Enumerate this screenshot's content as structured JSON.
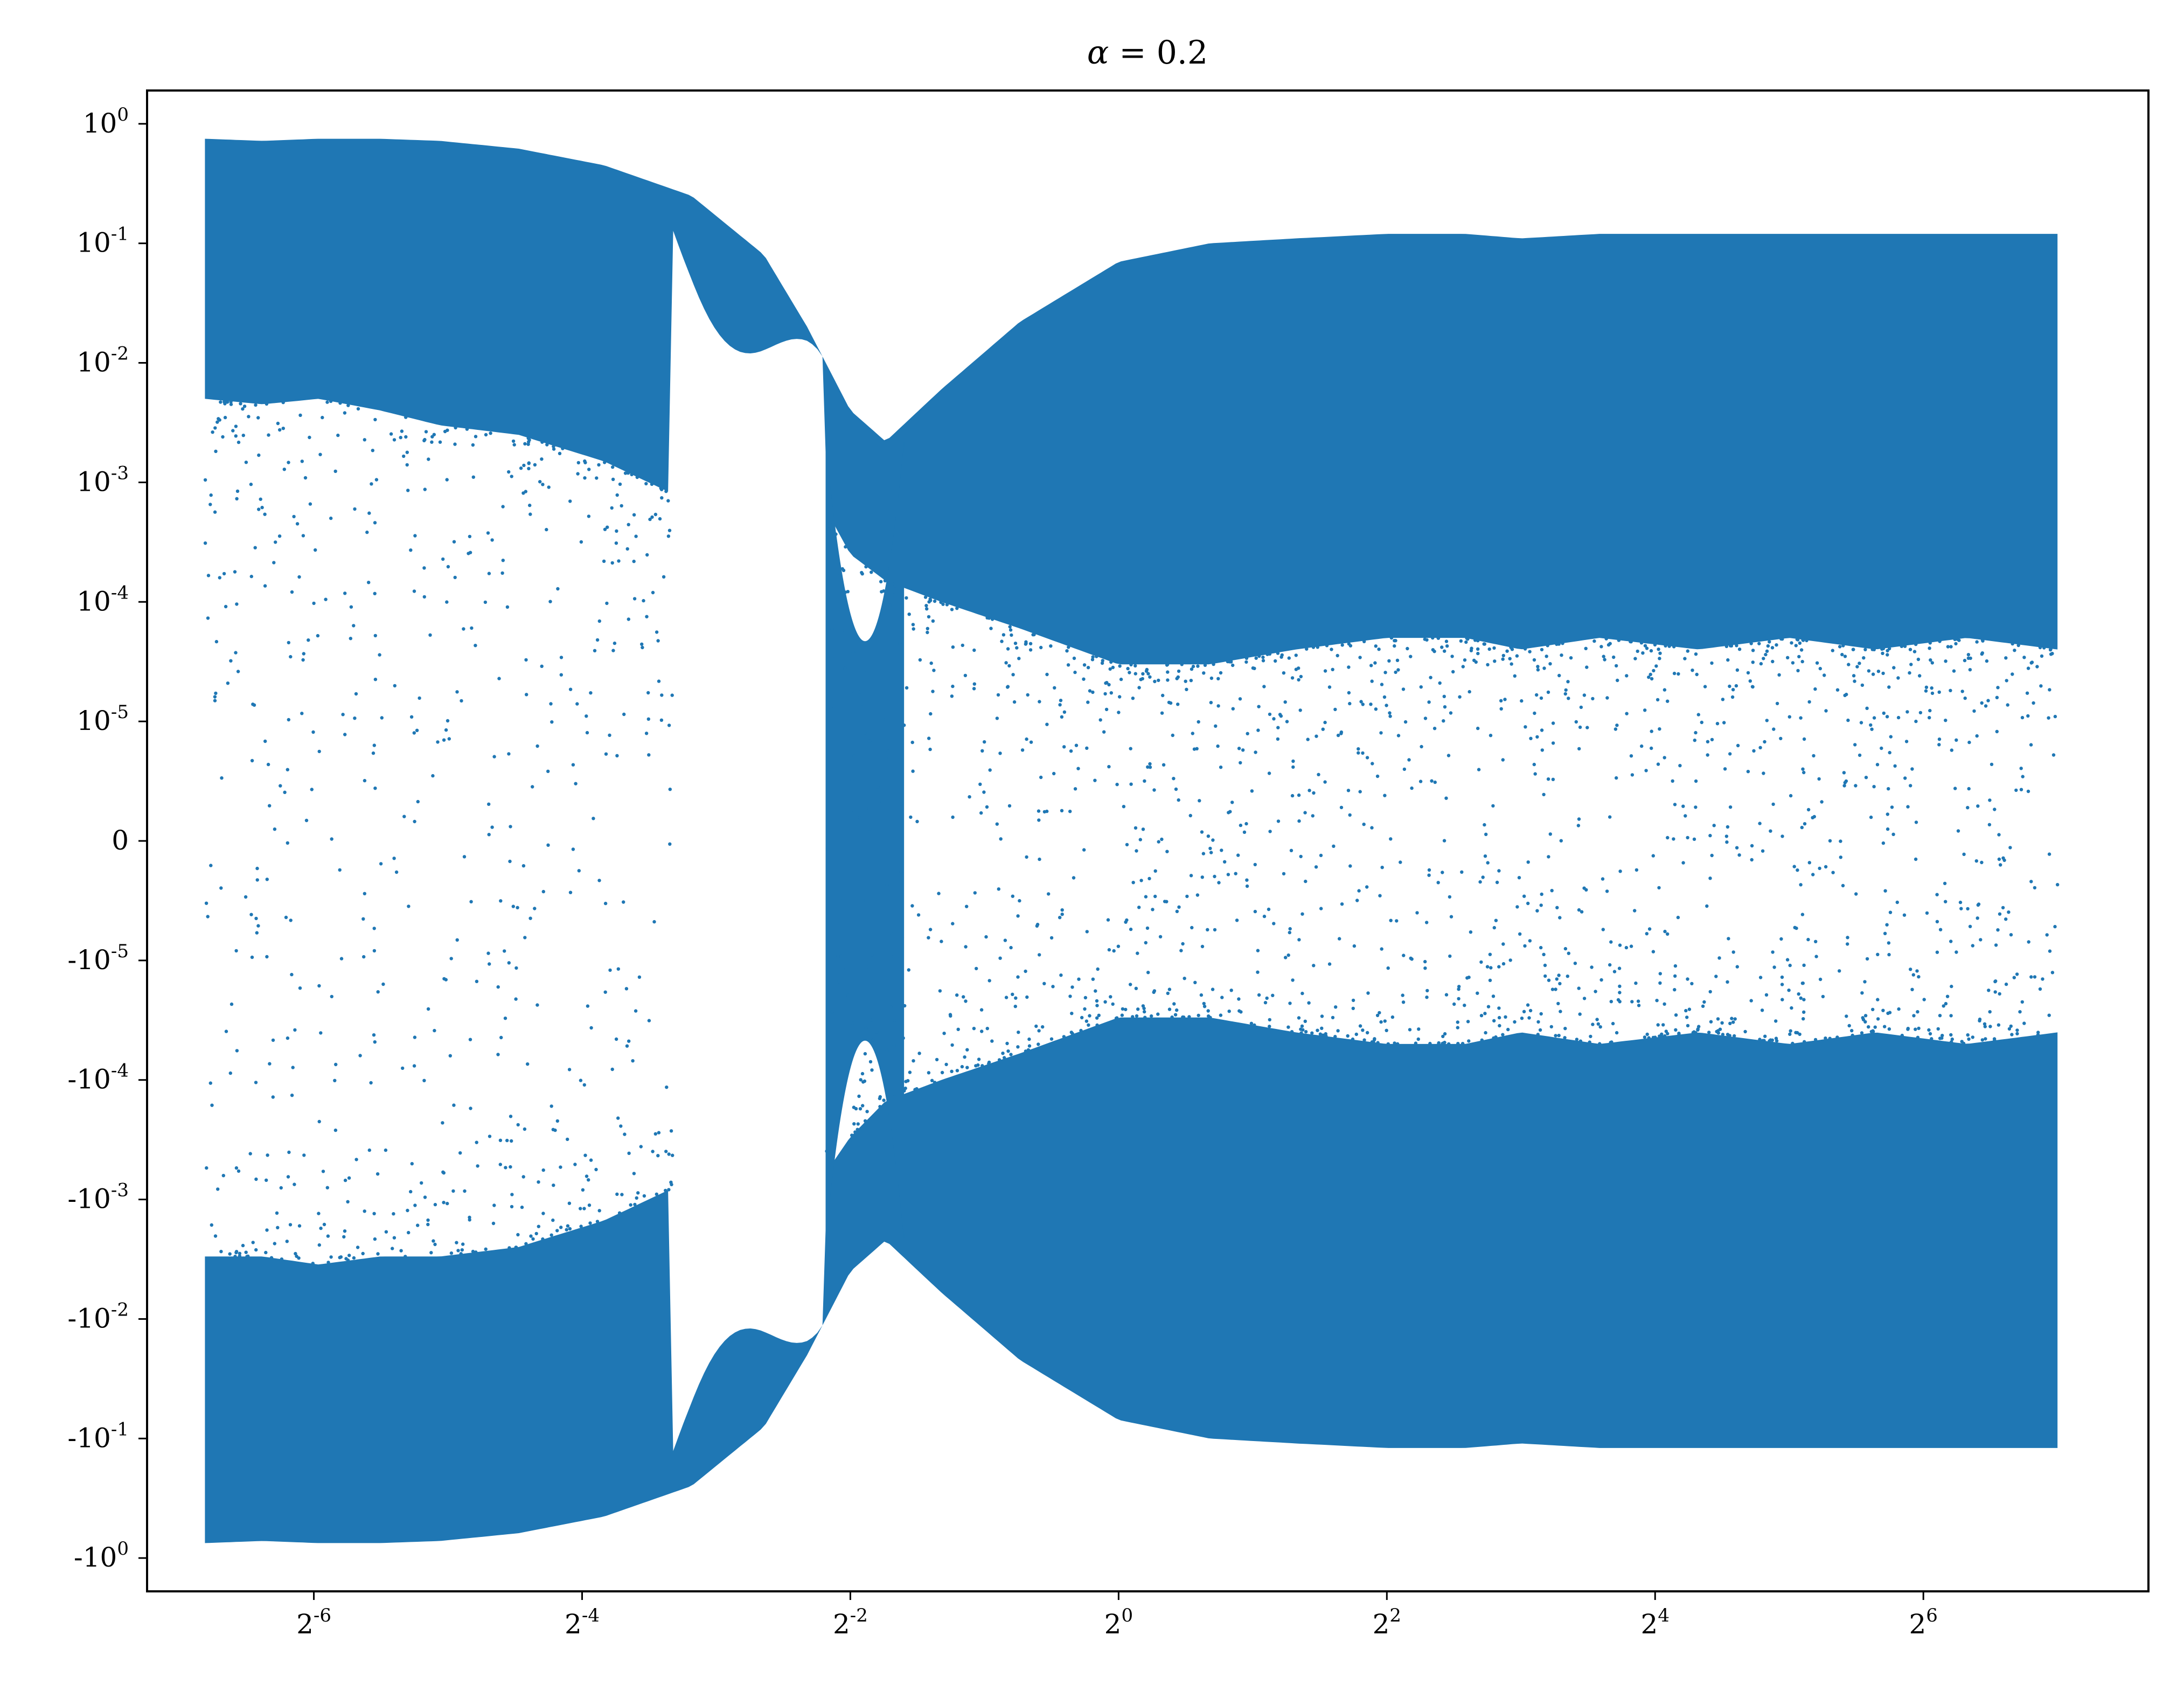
{
  "chart_data": {
    "type": "scatter",
    "title": "α = 0.2",
    "title_parts": {
      "symbol": "α",
      "rest": " = 0.2"
    },
    "xlabel": "",
    "ylabel": "",
    "x_scale": "log2",
    "y_scale": "symlog",
    "y_linthresh": 1e-05,
    "xlim": [
      0.0066,
      204.8
    ],
    "ylim": [
      -1.9,
      1.9
    ],
    "grid": false,
    "legend": null,
    "marker_color": "#1f77b4",
    "x_ticks": [
      {
        "base": "2",
        "exp": "-6",
        "value": 0.015625
      },
      {
        "base": "2",
        "exp": "-4",
        "value": 0.0625
      },
      {
        "base": "2",
        "exp": "-2",
        "value": 0.25
      },
      {
        "base": "2",
        "exp": "0",
        "value": 1
      },
      {
        "base": "2",
        "exp": "2",
        "value": 4
      },
      {
        "base": "2",
        "exp": "4",
        "value": 16
      },
      {
        "base": "2",
        "exp": "6",
        "value": 64
      }
    ],
    "y_ticks": [
      {
        "base": "10",
        "exp": "0",
        "value": 1
      },
      {
        "base": "10",
        "exp": "-1",
        "value": 0.1
      },
      {
        "base": "10",
        "exp": "-2",
        "value": 0.01
      },
      {
        "base": "10",
        "exp": "-3",
        "value": 0.001
      },
      {
        "base": "10",
        "exp": "-4",
        "value": 0.0001
      },
      {
        "base": "10",
        "exp": "-5",
        "value": 1e-05
      },
      {
        "base": "0",
        "exp": "",
        "value": 0
      },
      {
        "base": "-10",
        "exp": "-5",
        "value": -1e-05
      },
      {
        "base": "-10",
        "exp": "-4",
        "value": -0.0001
      },
      {
        "base": "-10",
        "exp": "-3",
        "value": -0.001
      },
      {
        "base": "-10",
        "exp": "-2",
        "value": -0.01
      },
      {
        "base": "-10",
        "exp": "-1",
        "value": -0.1
      },
      {
        "base": "-10",
        "exp": "0",
        "value": -1
      }
    ],
    "envelope": {
      "x": [
        0.0089,
        0.012,
        0.016,
        0.022,
        0.03,
        0.045,
        0.07,
        0.11,
        0.16,
        0.2,
        0.25,
        0.3,
        0.4,
        0.6,
        1.0,
        1.6,
        2.5,
        4,
        6,
        8,
        12,
        20,
        32,
        50,
        80,
        128
      ],
      "upper": [
        0.75,
        0.72,
        0.75,
        0.75,
        0.72,
        0.62,
        0.45,
        0.25,
        0.08,
        0.02,
        0.004,
        0.0022,
        0.006,
        0.022,
        0.07,
        0.1,
        0.11,
        0.12,
        0.12,
        0.11,
        0.12,
        0.12,
        0.12,
        0.12,
        0.12,
        0.12
      ],
      "lower": [
        -0.75,
        -0.72,
        -0.75,
        -0.75,
        -0.72,
        -0.62,
        -0.45,
        -0.25,
        -0.08,
        -0.02,
        -0.004,
        -0.0022,
        -0.006,
        -0.022,
        -0.07,
        -0.1,
        -0.11,
        -0.12,
        -0.12,
        -0.11,
        -0.12,
        -0.12,
        -0.12,
        -0.12,
        -0.12,
        -0.12
      ]
    },
    "inner_band_edge": {
      "x": [
        0.0089,
        0.012,
        0.016,
        0.022,
        0.03,
        0.045,
        0.07,
        0.1,
        0.22,
        0.25,
        0.3,
        0.4,
        0.6,
        1.0,
        1.6,
        2.5,
        4,
        6,
        8,
        12,
        20,
        32,
        50,
        80,
        128
      ],
      "upper": [
        0.005,
        0.0045,
        0.005,
        0.004,
        0.003,
        0.0025,
        0.0015,
        0.0008,
        0.0006,
        0.00025,
        0.00015,
        0.0001,
        6e-05,
        3e-05,
        3e-05,
        4e-05,
        5e-05,
        5e-05,
        4e-05,
        5e-05,
        4e-05,
        5e-05,
        4e-05,
        5e-05,
        4e-05
      ],
      "lower": [
        -0.003,
        -0.003,
        -0.0035,
        -0.003,
        -0.003,
        -0.0025,
        -0.0015,
        -0.0008,
        -0.0006,
        -0.0003,
        -0.00015,
        -0.0001,
        -6e-05,
        -3e-05,
        -3e-05,
        -4e-05,
        -5e-05,
        -5e-05,
        -4e-05,
        -5e-05,
        -4e-05,
        -5e-05,
        -4e-05,
        -5e-05,
        -4e-05
      ]
    },
    "gap_region": {
      "x_start": 0.1,
      "x_end": 0.22,
      "notes_y_boundary": 0.012
    }
  }
}
